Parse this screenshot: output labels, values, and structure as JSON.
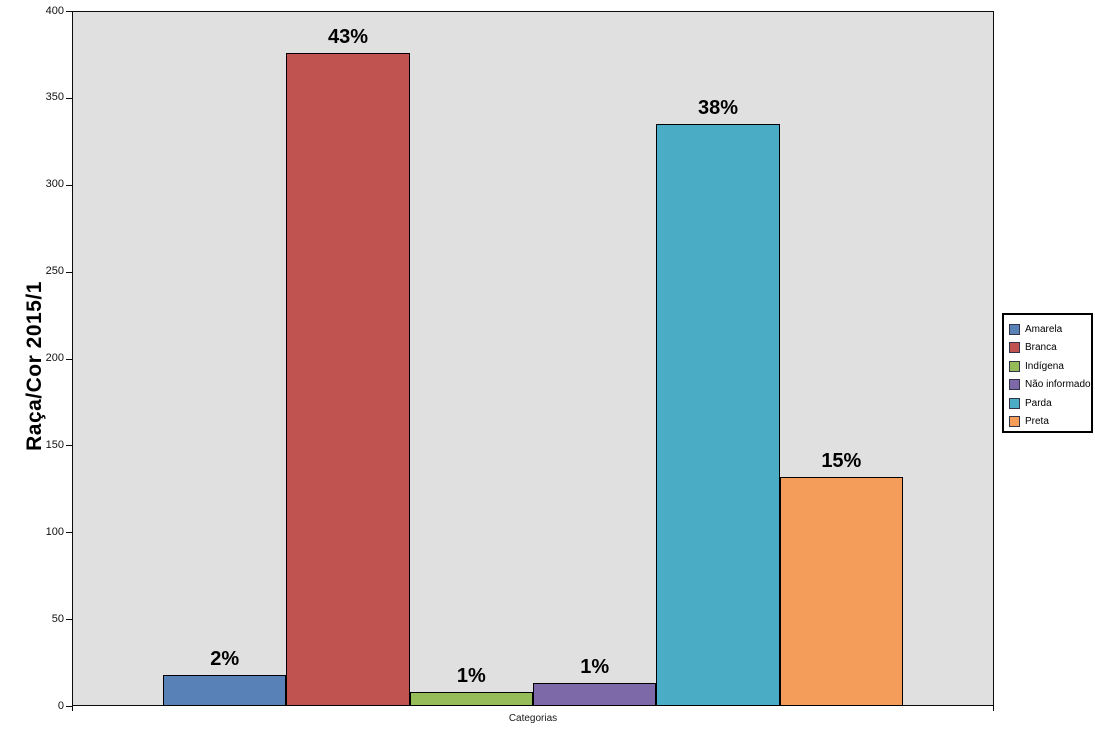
{
  "chart_data": {
    "type": "bar",
    "title": "",
    "ylabel": "Raça/Cor 2015/1",
    "xlabel": "Categorias",
    "ylim": [
      0,
      400
    ],
    "yticks": [
      0,
      50,
      100,
      150,
      200,
      250,
      300,
      350,
      400
    ],
    "grid": false,
    "legend_position": "right",
    "plot_bg_color": "#E0E0E0",
    "axis_color": "#0d0d0d",
    "categories": [
      "Amarela",
      "Branca",
      "Indígena",
      "Não informado",
      "Parda",
      "Preta"
    ],
    "series": [
      {
        "name": "Amarela",
        "value": 18,
        "data_label": "2%",
        "color": "#5881B8"
      },
      {
        "name": "Branca",
        "value": 376,
        "data_label": "43%",
        "color": "#C0534F"
      },
      {
        "name": "Indígena",
        "value": 8,
        "data_label": "1%",
        "color": "#95BC59"
      },
      {
        "name": "Não informado",
        "value": 13,
        "data_label": "1%",
        "color": "#7D68A8"
      },
      {
        "name": "Parda",
        "value": 335,
        "data_label": "38%",
        "color": "#4BACC6"
      },
      {
        "name": "Preta",
        "value": 132,
        "data_label": "15%",
        "color": "#F49C59"
      }
    ]
  }
}
